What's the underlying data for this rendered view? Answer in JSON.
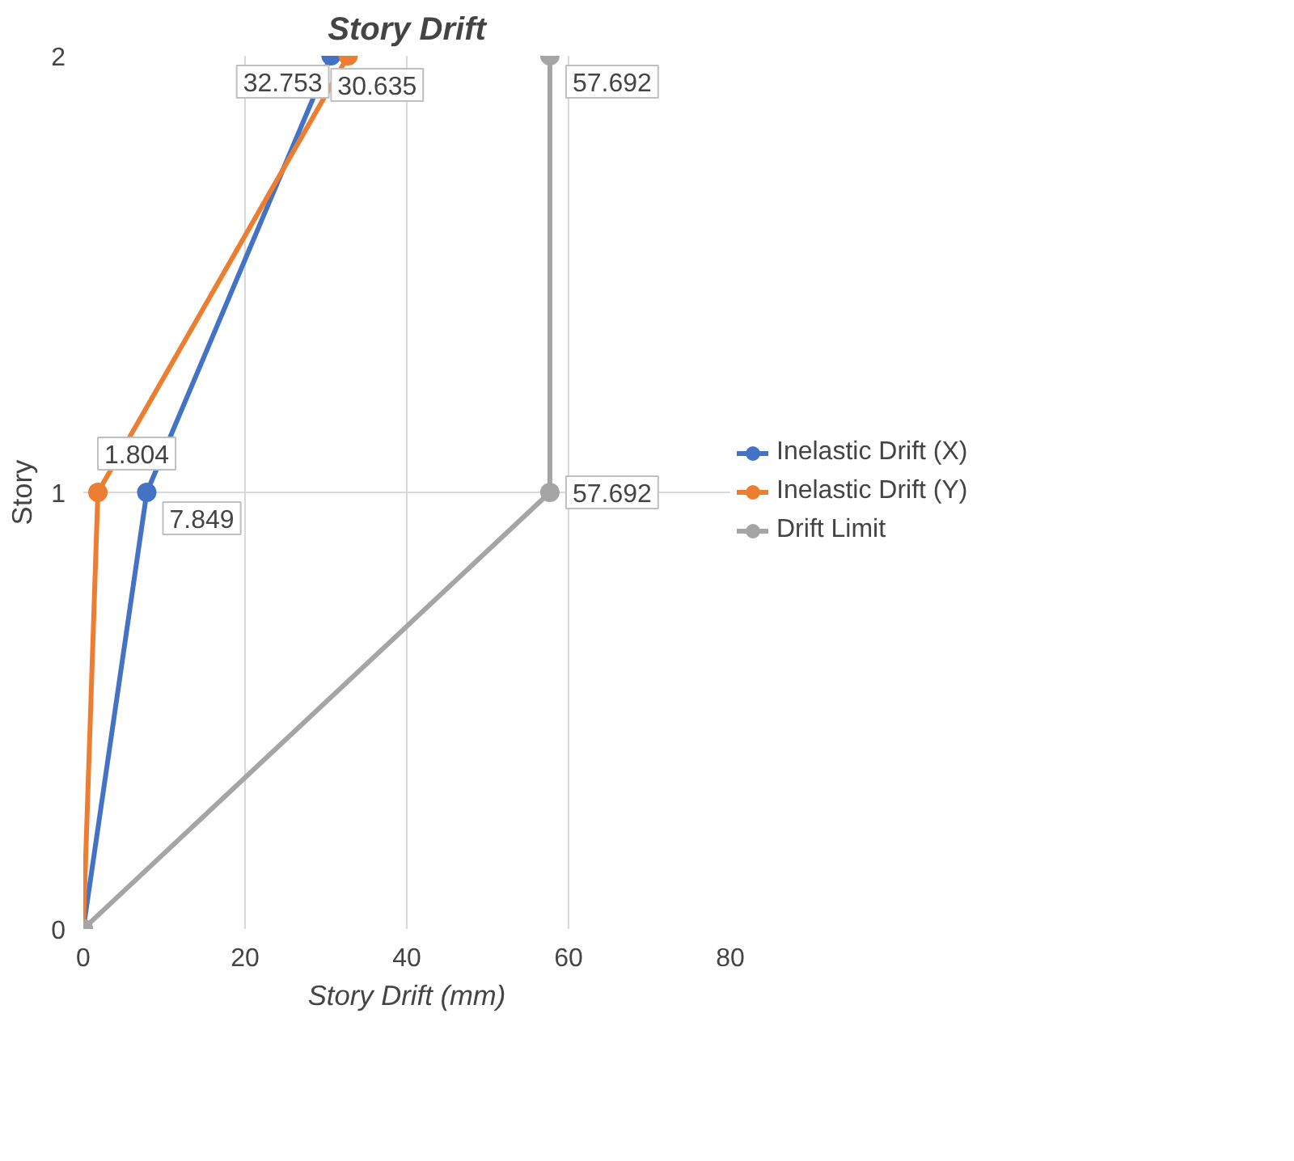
{
  "chart_data": {
    "type": "line",
    "title": "Story Drift",
    "xlabel": "Story Drift (mm)",
    "ylabel": "Story",
    "xlim": [
      0,
      80
    ],
    "xticks": [
      0,
      20,
      40,
      60,
      80
    ],
    "ylim": [
      0,
      2
    ],
    "yticks": [
      0,
      1,
      2
    ],
    "grid": true,
    "legend": "right",
    "marker": "circle",
    "line_style": "solid",
    "series": [
      {
        "name": "Inelastic Drift (X)",
        "color": "#4472c4",
        "x": [
          0,
          7.849,
          30.635
        ],
        "values": [
          0,
          1,
          2
        ]
      },
      {
        "name": "Inelastic Drift (Y)",
        "color": "#ed7d31",
        "x": [
          0,
          1.804,
          32.753
        ],
        "values": [
          0,
          1,
          2
        ]
      },
      {
        "name": "Drift Limit",
        "color": "#a5a5a5",
        "x": [
          0,
          57.692,
          57.692
        ],
        "values": [
          0,
          1,
          2
        ]
      }
    ],
    "annotations": [
      {
        "text": "7.849",
        "x": 7.849,
        "y": 1
      },
      {
        "text": "30.635",
        "x": 30.635,
        "y": 2
      },
      {
        "text": "1.804",
        "x": 1.804,
        "y": 1
      },
      {
        "text": "32.753",
        "x": 32.753,
        "y": 2
      },
      {
        "text": "57.692",
        "x": 57.692,
        "y": 1
      },
      {
        "text": "57.692",
        "x": 57.692,
        "y": 2
      }
    ]
  }
}
